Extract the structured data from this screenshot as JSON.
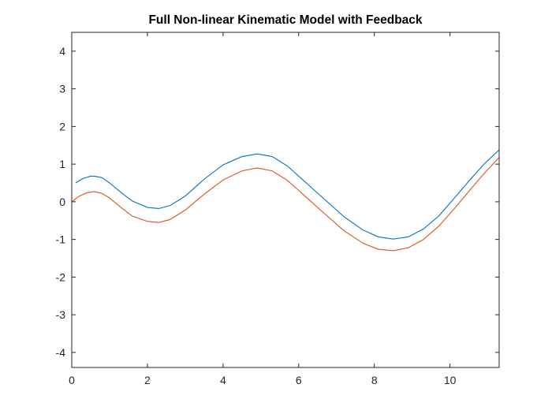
{
  "chart_data": {
    "type": "line",
    "title": "Full Non-linear Kinematic Model with Feedback",
    "xlabel": "",
    "ylabel": "",
    "xlim": [
      0,
      11.3
    ],
    "ylim": [
      -4.4,
      4.5
    ],
    "xticks": [
      0,
      2,
      4,
      6,
      8,
      10
    ],
    "yticks": [
      -4,
      -3,
      -2,
      -1,
      0,
      1,
      2,
      3,
      4
    ],
    "grid": false,
    "legend": "none",
    "series": [
      {
        "color": "#0072BD",
        "x": [
          0.1,
          0.3,
          0.5,
          0.6,
          0.8,
          1.0,
          1.3,
          1.6,
          2.0,
          2.3,
          2.6,
          3.0,
          3.5,
          4.0,
          4.5,
          4.9,
          5.3,
          5.7,
          6.2,
          6.7,
          7.2,
          7.7,
          8.1,
          8.5,
          8.9,
          9.3,
          9.7,
          10.1,
          10.5,
          10.9,
          11.3
        ],
        "y": [
          0.5,
          0.62,
          0.68,
          0.68,
          0.64,
          0.5,
          0.25,
          0.02,
          -0.15,
          -0.18,
          -0.1,
          0.15,
          0.6,
          0.98,
          1.2,
          1.27,
          1.2,
          0.95,
          0.5,
          0.05,
          -0.4,
          -0.75,
          -0.93,
          -0.99,
          -0.93,
          -0.72,
          -0.38,
          0.08,
          0.55,
          1.0,
          1.38
        ]
      },
      {
        "color": "#D95319",
        "x": [
          0.0,
          0.2,
          0.4,
          0.6,
          0.8,
          1.0,
          1.3,
          1.6,
          2.0,
          2.3,
          2.6,
          3.0,
          3.5,
          4.0,
          4.5,
          4.9,
          5.3,
          5.7,
          6.2,
          6.7,
          7.2,
          7.7,
          8.1,
          8.5,
          8.9,
          9.3,
          9.7,
          10.1,
          10.5,
          10.9,
          11.3
        ],
        "y": [
          0.0,
          0.15,
          0.24,
          0.27,
          0.22,
          0.1,
          -0.15,
          -0.38,
          -0.52,
          -0.55,
          -0.47,
          -0.22,
          0.2,
          0.58,
          0.82,
          0.9,
          0.82,
          0.57,
          0.12,
          -0.33,
          -0.77,
          -1.1,
          -1.26,
          -1.3,
          -1.22,
          -1.0,
          -0.65,
          -0.2,
          0.28,
          0.75,
          1.18
        ]
      }
    ]
  }
}
